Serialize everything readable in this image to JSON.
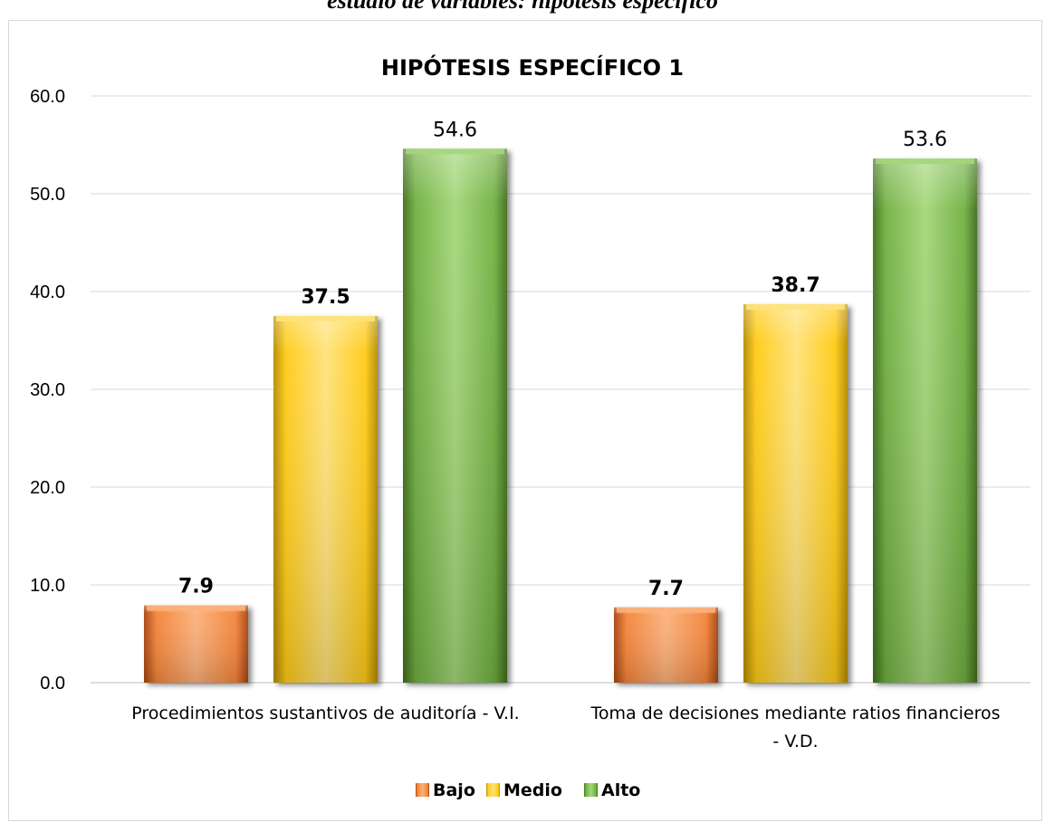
{
  "page": {
    "top_caption": "estudio de variables: hipótesis específico"
  },
  "chart_data": {
    "type": "bar",
    "title": "HIPÓTESIS ESPECÍFICO 1",
    "categories": [
      [
        "Procedimientos sustantivos de auditoría - V.I."
      ],
      [
        "Toma de decisiones mediante ratios financieros",
        "- V.D."
      ]
    ],
    "series": [
      {
        "name": "Bajo",
        "values": [
          7.9,
          7.7
        ],
        "color_light": "#fbb07a",
        "color_mid": "#f4843a",
        "color_dark": "#a8440e",
        "label_bold": true
      },
      {
        "name": "Medio",
        "values": [
          37.5,
          38.7
        ],
        "color_light": "#ffe27a",
        "color_mid": "#ffcb16",
        "color_dark": "#b58b00",
        "label_bold": true
      },
      {
        "name": "Alto",
        "values": [
          54.6,
          53.6
        ],
        "color_light": "#a4d67a",
        "color_mid": "#70b040",
        "color_dark": "#3f6e1c",
        "label_bold": false
      }
    ],
    "ylim": [
      0,
      60
    ],
    "yticks": [
      "0.0",
      "10.0",
      "20.0",
      "30.0",
      "40.0",
      "50.0",
      "60.0"
    ],
    "grid": true,
    "legend": "bottom",
    "xlabel": "",
    "ylabel": ""
  }
}
